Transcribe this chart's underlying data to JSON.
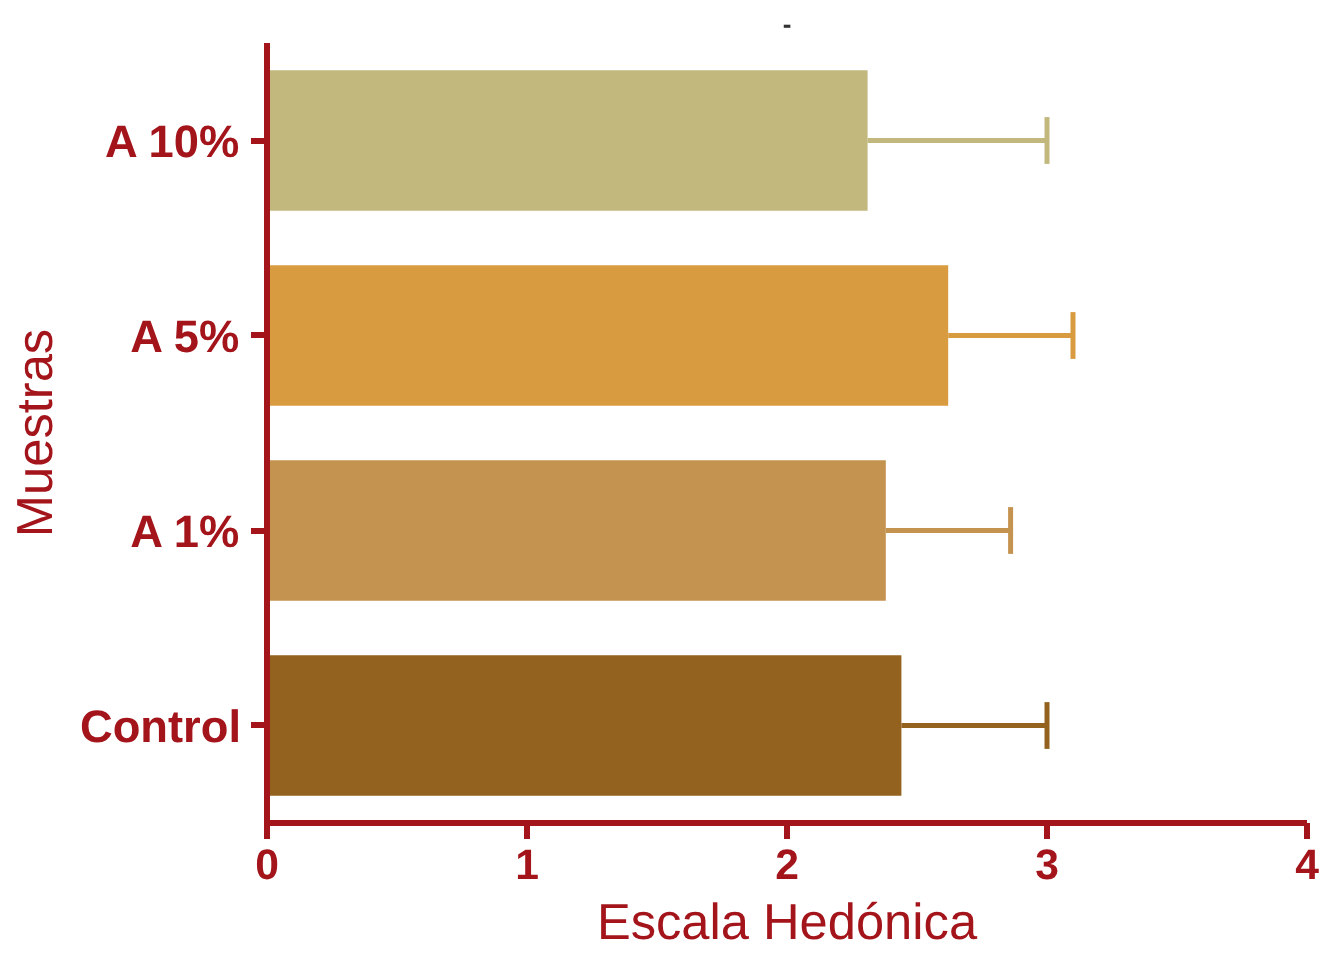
{
  "chart_data": {
    "type": "bar",
    "orientation": "horizontal",
    "title": "-",
    "xlabel": "Escala Hedónica",
    "ylabel": "Muestras",
    "categories": [
      "A 10%",
      "A 5%",
      "A 1%",
      "Control"
    ],
    "values": [
      2.31,
      2.62,
      2.38,
      2.44
    ],
    "errors": [
      0.69,
      0.48,
      0.48,
      0.56
    ],
    "colors": [
      "#c2b87e",
      "#d89b40",
      "#c4934f",
      "#93621f"
    ],
    "xlim": [
      0,
      4
    ],
    "xticks": [
      0,
      1,
      2,
      3,
      4
    ],
    "grid": false
  }
}
